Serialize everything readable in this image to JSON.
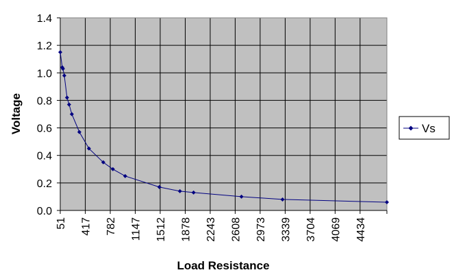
{
  "chart_data": {
    "type": "line",
    "title": "",
    "xlabel": "Load Resistance",
    "ylabel": "Voltage",
    "xlim": [
      51,
      4826
    ],
    "ylim": [
      0,
      1.4
    ],
    "x_ticks": [
      51,
      417,
      782,
      1147,
      1512,
      1878,
      2243,
      2608,
      2973,
      3339,
      3704,
      4069,
      4434
    ],
    "x_tick_labels": [
      "51",
      "417",
      "782",
      "1147",
      "1512",
      "1878",
      "2243",
      "2608",
      "2973",
      "3339",
      "3704",
      "4069",
      "4434"
    ],
    "y_ticks": [
      0,
      0.2,
      0.4,
      0.6,
      0.8,
      1.0,
      1.2,
      1.4
    ],
    "y_tick_labels": [
      "0.0",
      "0.2",
      "0.4",
      "0.6",
      "0.8",
      "1.0",
      "1.2",
      "1.4"
    ],
    "grid": true,
    "plot_background": "#c0c0c0",
    "legend_position": "right",
    "series": [
      {
        "name": "Vs",
        "color": "#000080",
        "marker": "diamond",
        "x": [
          51,
          80,
          90,
          110,
          150,
          180,
          220,
          330,
          470,
          680,
          820,
          1000,
          1500,
          1800,
          2000,
          2700,
          3300,
          4826
        ],
        "y": [
          1.15,
          1.04,
          1.03,
          0.98,
          0.82,
          0.77,
          0.7,
          0.57,
          0.45,
          0.35,
          0.3,
          0.25,
          0.17,
          0.14,
          0.13,
          0.1,
          0.08,
          0.06
        ]
      }
    ]
  }
}
